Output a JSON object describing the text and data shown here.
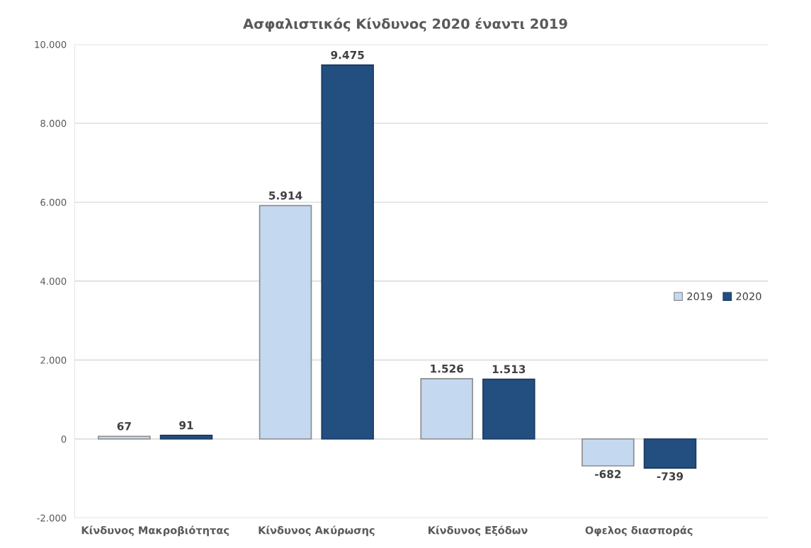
{
  "chart_data": {
    "type": "bar",
    "title": "Ασφαλιστικός Κίνδυνος 2020 έναντι 2019",
    "categories": [
      "Κίνδυνος Μακροβιότητας",
      "Κίνδυνος Ακύρωσης",
      "Κίνδυνος Εξόδων",
      "Οφελος διασποράς"
    ],
    "series": [
      {
        "name": "2019",
        "color": "#c4d8f0",
        "values": [
          67,
          5914,
          1526,
          -682
        ],
        "value_labels": [
          "67",
          "5.914",
          "1.526",
          "-682"
        ]
      },
      {
        "name": "2020",
        "color": "#234e80",
        "values": [
          91,
          9475,
          1513,
          -739
        ],
        "value_labels": [
          "91",
          "9.475",
          "1.513",
          "-739"
        ]
      }
    ],
    "ylim": [
      -2000,
      10000
    ],
    "yticks": [
      {
        "value": -2000,
        "label": "-2.000"
      },
      0,
      {
        "value": 2000,
        "label": "2.000"
      },
      {
        "value": 4000,
        "label": "4.000"
      },
      {
        "value": 6000,
        "label": "6.000"
      },
      {
        "value": 8000,
        "label": "8.000"
      },
      {
        "value": 10000,
        "label": "10.000"
      }
    ],
    "grid": "y",
    "legend": "right"
  }
}
